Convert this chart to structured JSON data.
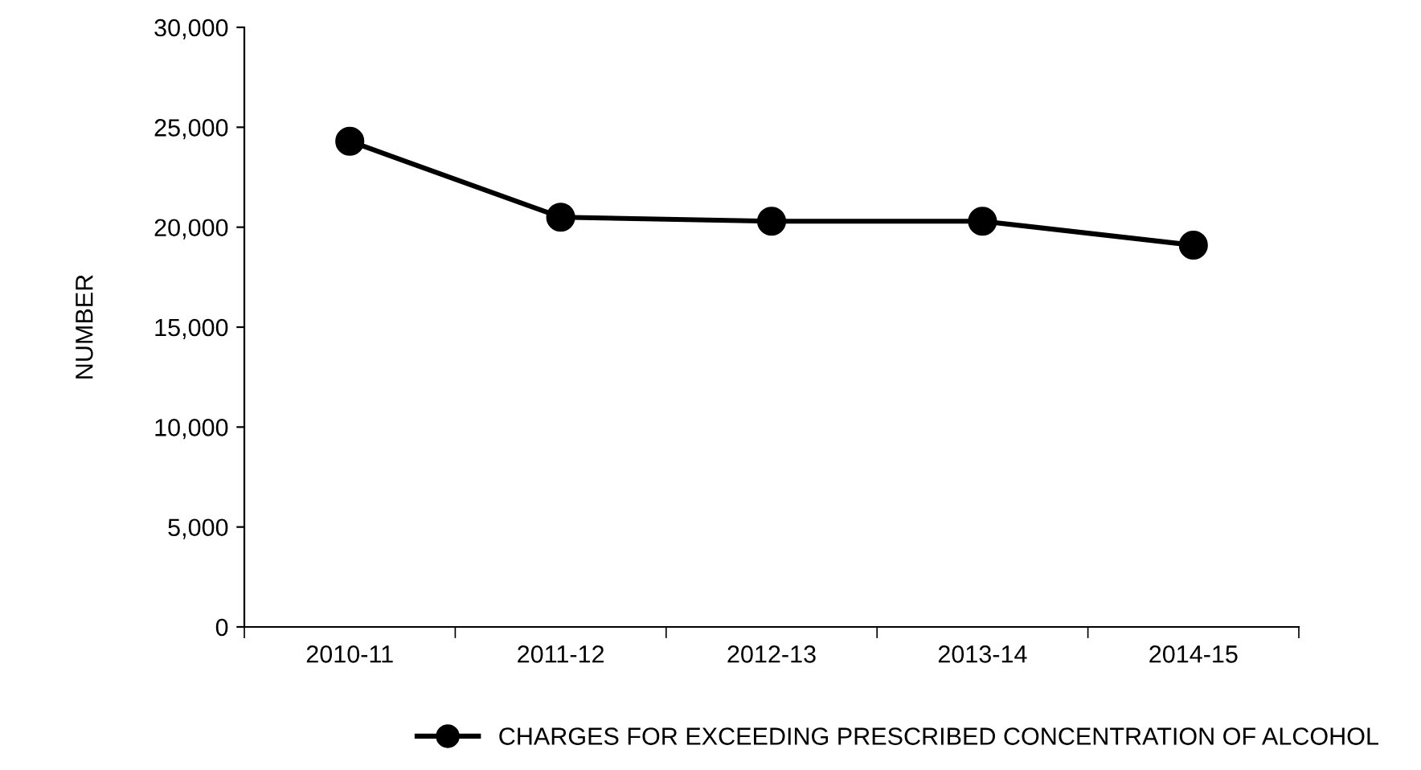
{
  "chart_data": {
    "type": "line",
    "ylabel": "NUMBER",
    "categories": [
      "2010-11",
      "2011-12",
      "2012-13",
      "2013-14",
      "2014-15"
    ],
    "series": [
      {
        "name": "CHARGES FOR EXCEEDING PRESCRIBED CONCENTRATION OF ALCOHOL",
        "color": "#000000",
        "values": [
          24300,
          20500,
          20300,
          20300,
          19100
        ]
      }
    ],
    "ylim": [
      0,
      30000
    ],
    "yticks": [
      {
        "value": 0,
        "label": "0"
      },
      {
        "value": 5000,
        "label": "5,000"
      },
      {
        "value": 10000,
        "label": "10,000"
      },
      {
        "value": 15000,
        "label": "15,000"
      },
      {
        "value": 20000,
        "label": "20,000"
      },
      {
        "value": 25000,
        "label": "25,000"
      },
      {
        "value": 30000,
        "label": "30,000"
      }
    ],
    "marker": "circle",
    "line_style": "solid",
    "grid": false,
    "legend": "bottom"
  }
}
